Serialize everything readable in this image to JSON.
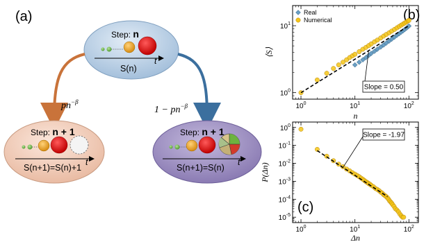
{
  "panel_a": {
    "label": "(a)",
    "top_step_prefix": "Step: ",
    "top_step_value": "n",
    "top_equation": "S(n)",
    "t_label": "t",
    "left_prob_base": "pn",
    "left_prob_exp": "−β",
    "right_prob_prefix": "1 − ",
    "right_prob_base": "pn",
    "right_prob_exp": "−β",
    "left_step_prefix": "Step: ",
    "left_step_value": "n + 1",
    "left_equation": "S(n+1)=S(n)+1",
    "right_step_prefix": "Step: ",
    "right_step_value": "n + 1",
    "right_equation": "S(n+1)=S(n)"
  },
  "colors": {
    "top_ellipse": "#bdd3e8",
    "left_ellipse": "#f6d3c2",
    "right_ellipse": "#a89bc7",
    "left_arrow": "#c9733a",
    "right_arrow": "#3b6f9e",
    "real_marker": "#6a9fc4",
    "numerical_marker": "#f5c518"
  },
  "chart_data": [
    {
      "type": "scatter",
      "panel_label": "(b)",
      "xlabel": "n",
      "ylabel": "⟨S⟩",
      "xscale": "log",
      "yscale": "log",
      "xlim": [
        0.7,
        150
      ],
      "ylim": [
        0.8,
        20
      ],
      "xticks": [
        1,
        10,
        100
      ],
      "yticks": [
        1,
        10
      ],
      "legend_position": "top-left",
      "series": [
        {
          "name": "Real",
          "marker": "diamond",
          "x": [
            10,
            12,
            14,
            16,
            18,
            20,
            23,
            26,
            30,
            34,
            38,
            43,
            48,
            54,
            60,
            66,
            72,
            78,
            84,
            90,
            96,
            100
          ],
          "y": [
            2.6,
            2.85,
            3.1,
            3.35,
            3.6,
            3.85,
            4.15,
            4.45,
            4.8,
            5.15,
            5.5,
            5.9,
            6.3,
            6.75,
            7.2,
            7.6,
            8.0,
            8.4,
            8.8,
            9.2,
            9.6,
            9.9
          ]
        },
        {
          "name": "Numerical",
          "marker": "circle",
          "x": [
            1,
            2,
            3,
            4,
            5,
            6,
            7,
            8,
            9,
            10,
            12,
            14,
            16,
            18,
            20,
            23,
            26,
            30,
            34,
            38,
            43,
            48,
            54,
            60,
            66,
            72,
            78,
            84,
            90,
            96,
            100
          ],
          "y": [
            1,
            1.55,
            1.95,
            2.3,
            2.6,
            2.85,
            3.1,
            3.35,
            3.55,
            3.75,
            4.1,
            4.45,
            4.75,
            5.05,
            5.35,
            5.75,
            6.1,
            6.55,
            7.0,
            7.4,
            7.85,
            8.3,
            8.8,
            9.3,
            9.75,
            10.2,
            10.6,
            11.0,
            11.4,
            11.8,
            12.0
          ]
        }
      ],
      "fit_line": {
        "slope": 0.5,
        "intercept_at_1": 1.0,
        "x_range": [
          1,
          100
        ]
      },
      "annotation": "Slope = 0.50"
    },
    {
      "type": "scatter",
      "panel_label": "(c)",
      "xlabel": "Δn",
      "ylabel": "P(Δn)",
      "xscale": "log",
      "yscale": "log",
      "xlim": [
        0.7,
        150
      ],
      "ylim": [
        5e-06,
        2
      ],
      "xticks": [
        1,
        10,
        100
      ],
      "yticks": [
        1,
        0.1,
        0.01,
        0.001,
        0.0001,
        1e-05
      ],
      "series": [
        {
          "name": "",
          "marker": "circle",
          "x": [
            1,
            2,
            3,
            4,
            5,
            6,
            7,
            8,
            9,
            10,
            11,
            12,
            13,
            14,
            15,
            16,
            17,
            18,
            19,
            20,
            22,
            24,
            26,
            28,
            30,
            32,
            34,
            36,
            38,
            40,
            42,
            44,
            46,
            48,
            50,
            53,
            56,
            60,
            64,
            68,
            72,
            76,
            80
          ],
          "y": [
            0.8,
            0.06,
            0.025,
            0.014,
            0.009,
            0.0065,
            0.0048,
            0.0038,
            0.003,
            0.0025,
            0.0021,
            0.0018,
            0.0015,
            0.0013,
            0.0011,
            0.00095,
            0.00085,
            0.00075,
            0.00068,
            0.0006,
            0.0005,
            0.0004,
            0.00035,
            0.0003,
            0.00025,
            0.00022,
            0.00018,
            0.00016,
            0.00014,
            0.00012,
            0.0001,
            8e-05,
            7e-05,
            6e-05,
            5e-05,
            4e-05,
            3e-05,
            2.5e-05,
            2e-05,
            1.5e-05,
            1.2e-05,
            1e-05,
            1e-05
          ]
        }
      ],
      "fit_line": {
        "slope": -1.97,
        "intercept_at_1": 0.2,
        "x_range": [
          2,
          40
        ]
      },
      "annotation": "Slope = -1.97"
    }
  ]
}
